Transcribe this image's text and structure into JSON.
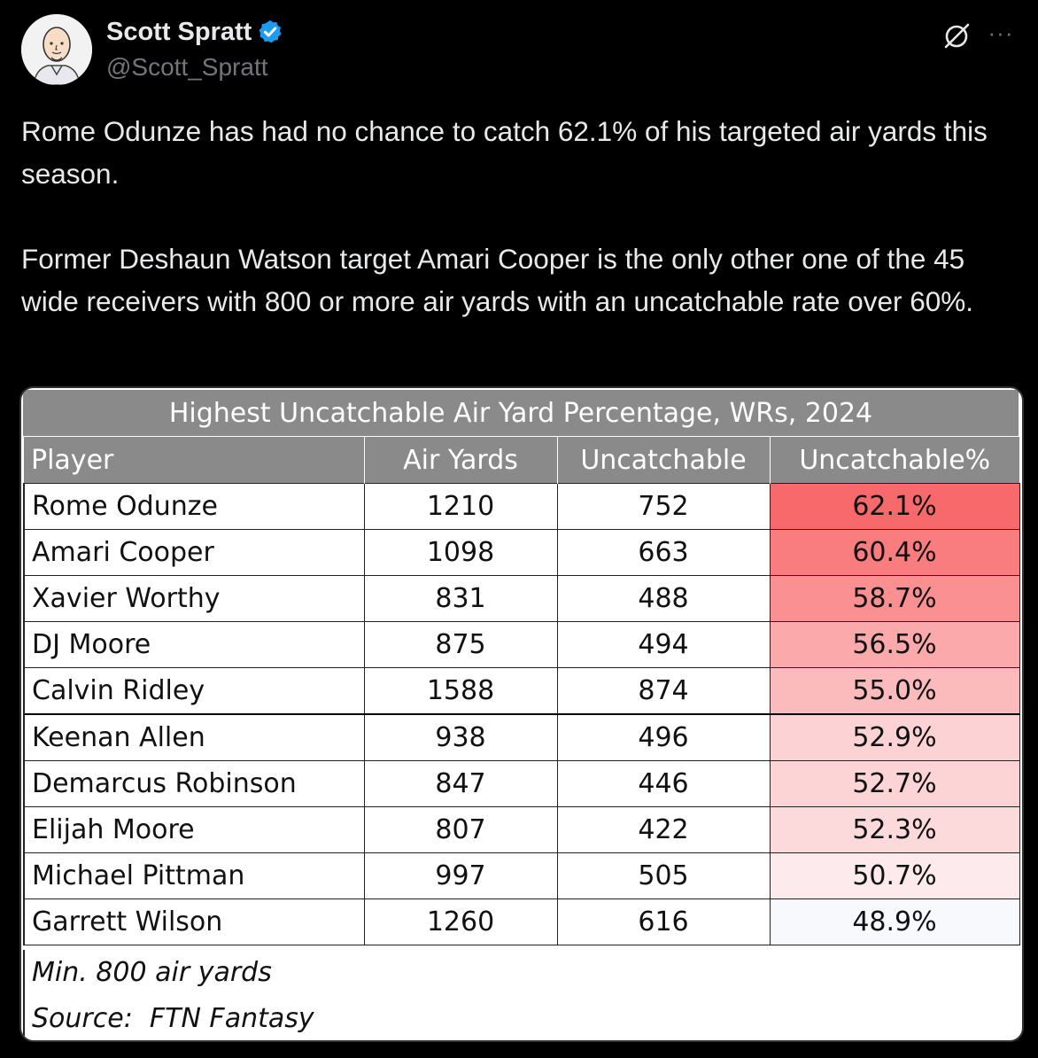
{
  "author": {
    "display_name": "Scott Spratt",
    "handle": "@Scott_Spratt",
    "avatar_icon": "avatar-illustration",
    "verified_icon": "verified-badge-icon"
  },
  "toolbar": {
    "grok_icon": "grok-icon",
    "more_icon": "more-options-icon",
    "more_glyph": "···"
  },
  "tweet": {
    "paragraph1": "Rome Odunze has had no chance to catch 62.1% of his targeted air yards this season.",
    "paragraph2": "Former Deshaun Watson target Amari Cooper is the only other one of the 45 wide receivers with 800 or more air yards with an uncatchable rate over 60%."
  },
  "table": {
    "title": "Highest Uncatchable Air Yard Percentage, WRs, 2024",
    "headers": [
      "Player",
      "Air Yards",
      "Uncatchable",
      "Uncatchable%"
    ],
    "rows": [
      {
        "player": "Rome Odunze",
        "air_yards": "1210",
        "uncatchable": "752",
        "pct": "62.1%",
        "color": "#f8696b"
      },
      {
        "player": "Amari Cooper",
        "air_yards": "1098",
        "uncatchable": "663",
        "pct": "60.4%",
        "color": "#f97d7f"
      },
      {
        "player": "Xavier Worthy",
        "air_yards": "831",
        "uncatchable": "488",
        "pct": "58.7%",
        "color": "#fa9092"
      },
      {
        "player": "DJ Moore",
        "air_yards": "875",
        "uncatchable": "494",
        "pct": "56.5%",
        "color": "#fba9ab"
      },
      {
        "player": "Calvin Ridley",
        "air_yards": "1588",
        "uncatchable": "874",
        "pct": "55.0%",
        "color": "#fbbabc"
      },
      {
        "player": "Keenan Allen",
        "air_yards": "938",
        "uncatchable": "496",
        "pct": "52.9%",
        "color": "#fcd2d4"
      },
      {
        "player": "Demarcus Robinson",
        "air_yards": "847",
        "uncatchable": "446",
        "pct": "52.7%",
        "color": "#fcd4d6"
      },
      {
        "player": "Elijah Moore",
        "air_yards": "807",
        "uncatchable": "422",
        "pct": "52.3%",
        "color": "#fcd9db"
      },
      {
        "player": "Michael Pittman",
        "air_yards": "997",
        "uncatchable": "505",
        "pct": "50.7%",
        "color": "#fdeaec"
      },
      {
        "player": "Garrett Wilson",
        "air_yards": "1260",
        "uncatchable": "616",
        "pct": "48.9%",
        "color": "#f8f9fc"
      }
    ],
    "note1": "Min. 800 air yards",
    "note2": "Source:  FTN Fantasy"
  }
}
